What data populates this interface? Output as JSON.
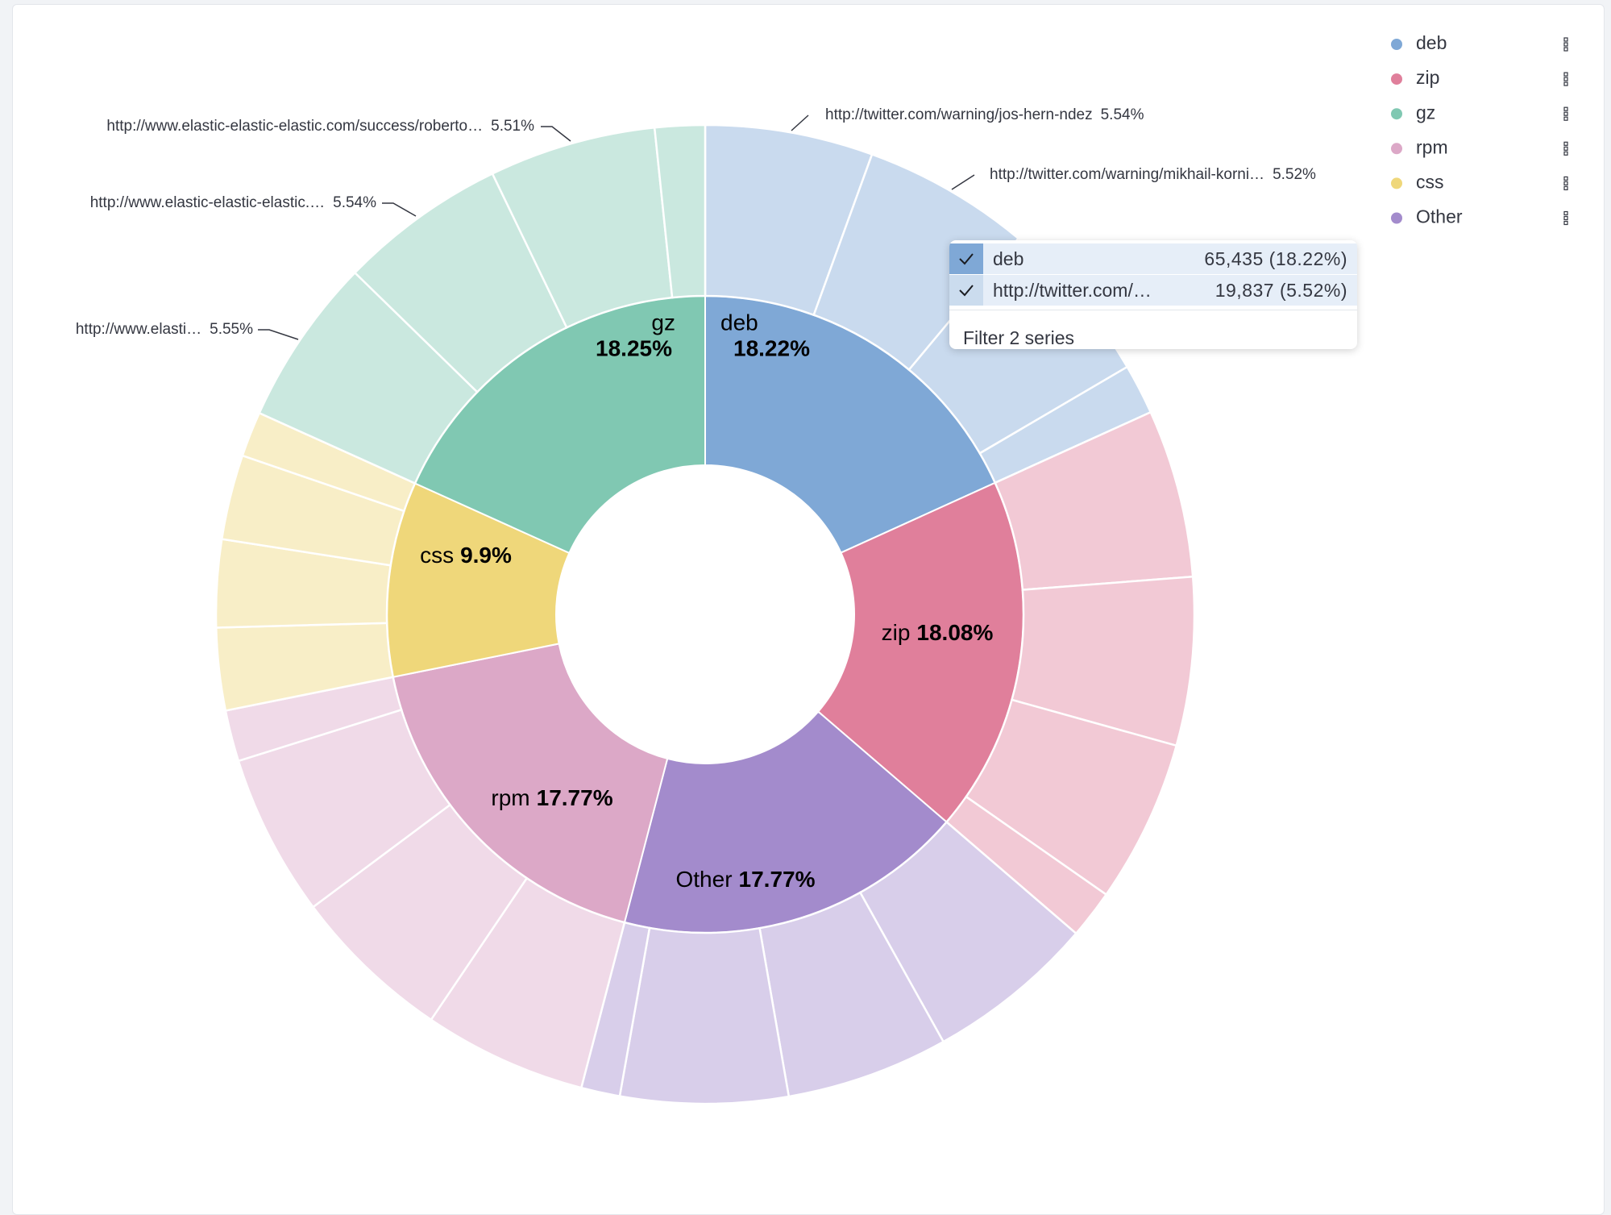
{
  "chart_data": {
    "type": "sunburst",
    "categories": [
      "deb",
      "zip",
      "Other",
      "rpm",
      "css",
      "gz"
    ],
    "values": [
      18.22,
      18.08,
      17.77,
      17.77,
      9.9,
      18.25
    ],
    "value_labels": [
      "18.22%",
      "18.08%",
      "17.77%",
      "17.77%",
      "9.9%",
      "18.25%"
    ],
    "colors": [
      "#7fa8d6",
      "#e07f9b",
      "#a38bcc",
      "#dca8c7",
      "#efd77a",
      "#80c8b2"
    ],
    "children": [
      {
        "names": [
          "http://twitter.com/warning/jos-hern-ndez",
          "http://twitter.com/warning/mikhail-korni…",
          null,
          null
        ],
        "values": [
          5.54,
          5.52,
          5.5,
          1.66
        ],
        "value_labels": [
          "5.54%",
          "5.52%",
          null,
          null
        ]
      },
      {
        "names": [
          null,
          null,
          null,
          null
        ],
        "values": [
          5.55,
          5.55,
          5.38,
          1.6
        ]
      },
      {
        "names": [
          null,
          null,
          null,
          null
        ],
        "values": [
          5.6,
          5.36,
          5.53,
          1.28
        ]
      },
      {
        "names": [
          null,
          null,
          null,
          null
        ],
        "values": [
          5.39,
          5.33,
          5.36,
          1.69
        ]
      },
      {
        "names": [
          null,
          null,
          null,
          null
        ],
        "values": [
          2.72,
          2.89,
          2.8,
          1.49
        ]
      },
      {
        "names": [
          "http://www.elasti…",
          "http://www.elastic-elastic-elastic.…",
          "http://www.elastic-elastic-elastic.com/success/roberto…",
          null
        ],
        "values": [
          5.55,
          5.54,
          5.51,
          1.65
        ],
        "value_labels": [
          "5.55%",
          "5.54%",
          "5.51%",
          null
        ]
      }
    ],
    "legend": [
      {
        "name": "deb",
        "color": "#7fa8d6"
      },
      {
        "name": "zip",
        "color": "#e07f9b"
      },
      {
        "name": "gz",
        "color": "#80c8b2"
      },
      {
        "name": "rpm",
        "color": "#dca8c7"
      },
      {
        "name": "css",
        "color": "#efd77a"
      },
      {
        "name": "Other",
        "color": "#a38bcc"
      }
    ],
    "tooltip": {
      "rows": [
        {
          "label": "deb",
          "value": "65,435 (18.22%)"
        },
        {
          "label": "http://twitter.com/…",
          "value": "19,837 (5.52%)"
        }
      ],
      "action": "Filter 2 series"
    }
  }
}
